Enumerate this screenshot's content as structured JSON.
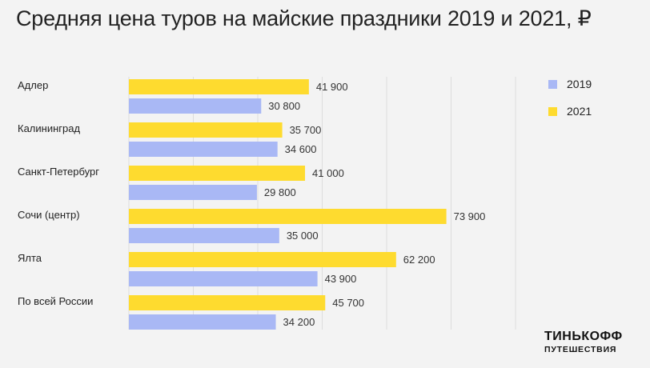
{
  "title": "Средняя цена туров на майские праздники 2019 и 2021, ₽",
  "brand": {
    "line1": "ТИНЬКОФФ",
    "line2": "ПУТЕШЕСТВИЯ"
  },
  "legend": [
    {
      "label": "2019",
      "color": "#a9b8f5"
    },
    {
      "label": "2021",
      "color": "#fedb2f"
    }
  ],
  "chart_data": {
    "type": "bar",
    "orientation": "horizontal",
    "title": "Средняя цена туров на майские праздники 2019 и 2021, ₽",
    "categories": [
      "Адлер",
      "Калининград",
      "Санкт-Петербург",
      "Сочи (центр)",
      "Ялта",
      "По всей России"
    ],
    "series": [
      {
        "name": "2021",
        "color": "#fedb2f",
        "values": [
          41900,
          35700,
          41000,
          73900,
          62200,
          45700
        ],
        "labels": [
          "41 900",
          "35 700",
          "41 000",
          "73 900",
          "62 200",
          "45 700"
        ]
      },
      {
        "name": "2019",
        "color": "#a9b8f5",
        "values": [
          30800,
          34600,
          29800,
          35000,
          43900,
          34200
        ],
        "labels": [
          "30 800",
          "34 600",
          "29 800",
          "35 000",
          "43 900",
          "34 200"
        ]
      }
    ],
    "xlim": [
      0,
      90000
    ],
    "grid": true,
    "legend_position": "right"
  }
}
